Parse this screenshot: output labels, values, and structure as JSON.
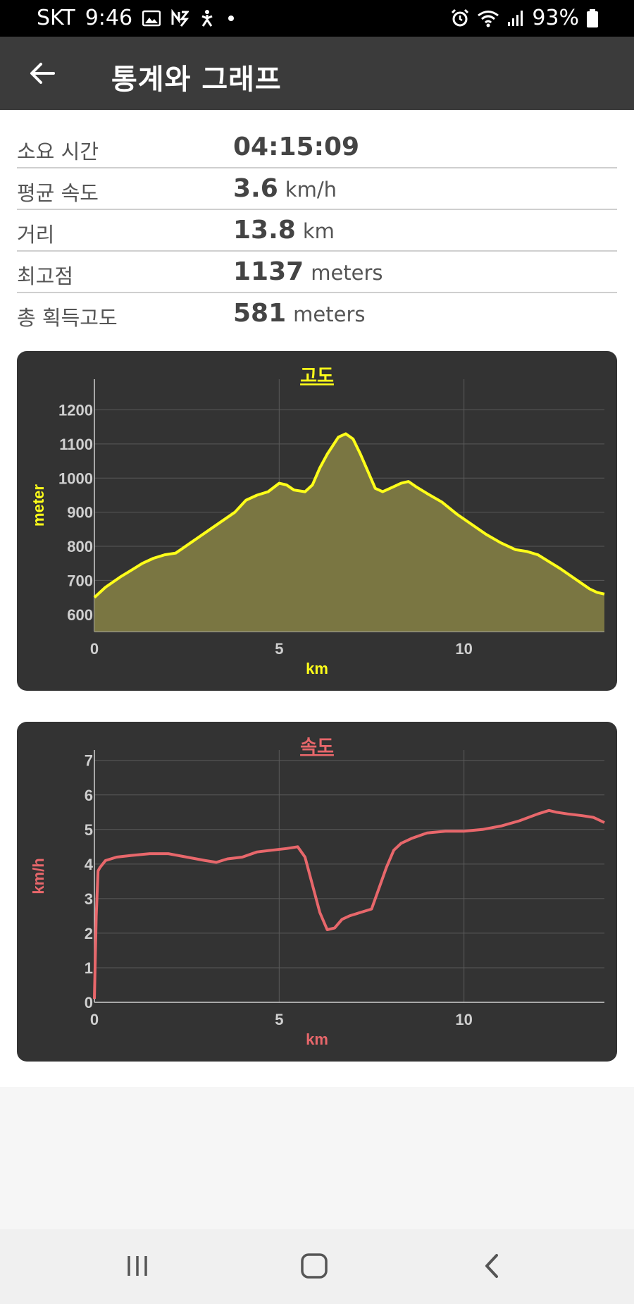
{
  "status_bar": {
    "carrier": "SKT",
    "time": "9:46",
    "battery": "93%",
    "icons": [
      "gallery-icon",
      "nfc-icon",
      "accessibility-icon",
      "dot-icon",
      "alarm-icon",
      "wifi-icon",
      "signal-icon",
      "battery-icon"
    ]
  },
  "app_bar": {
    "title": "통계와 그래프",
    "back_icon": "arrow-left-icon"
  },
  "stats": [
    {
      "label": "소요 시간",
      "value": "04:15:09",
      "unit": ""
    },
    {
      "label": "평균 속도",
      "value": "3.6",
      "unit": "km/h"
    },
    {
      "label": "거리",
      "value": "13.8",
      "unit": "km"
    },
    {
      "label": "최고점",
      "value": "1137",
      "unit": "meters"
    },
    {
      "label": "총 획득고도",
      "value": "581",
      "unit": "meters"
    }
  ],
  "chart_data": [
    {
      "type": "area",
      "title": "고도",
      "xlabel": "km",
      "ylabel": "meter",
      "xlim": [
        0,
        13.8
      ],
      "ylim": [
        550,
        1290
      ],
      "xticks": [
        0,
        5,
        10
      ],
      "yticks": [
        600,
        700,
        800,
        900,
        1000,
        1100,
        1200
      ],
      "grid": true,
      "color": "#ffff1a",
      "fill": "#7a7642",
      "x": [
        0,
        0.3,
        0.7,
        1.0,
        1.3,
        1.6,
        1.9,
        2.2,
        2.6,
        3.0,
        3.4,
        3.8,
        4.1,
        4.4,
        4.7,
        5.0,
        5.2,
        5.4,
        5.7,
        5.9,
        6.1,
        6.3,
        6.6,
        6.8,
        7.0,
        7.2,
        7.4,
        7.6,
        7.8,
        8.0,
        8.3,
        8.5,
        8.7,
        9.0,
        9.4,
        9.8,
        10.2,
        10.6,
        11.0,
        11.4,
        11.7,
        12.0,
        12.3,
        12.6,
        13.0,
        13.4,
        13.6,
        13.8
      ],
      "y": [
        650,
        680,
        710,
        730,
        750,
        765,
        775,
        780,
        810,
        840,
        870,
        900,
        935,
        950,
        960,
        985,
        980,
        965,
        960,
        980,
        1030,
        1070,
        1120,
        1130,
        1115,
        1070,
        1020,
        970,
        960,
        970,
        985,
        990,
        975,
        955,
        930,
        895,
        865,
        835,
        810,
        790,
        785,
        775,
        755,
        735,
        705,
        675,
        665,
        660
      ]
    },
    {
      "type": "line",
      "title": "속도",
      "xlabel": "km",
      "ylabel": "km/h",
      "xlim": [
        0,
        13.8
      ],
      "ylim": [
        0,
        7.3
      ],
      "xticks": [
        0,
        5,
        10
      ],
      "yticks": [
        0,
        1,
        2,
        3,
        4,
        5,
        6,
        7
      ],
      "grid": true,
      "color": "#e8676b",
      "x": [
        0,
        0.05,
        0.1,
        0.15,
        0.3,
        0.6,
        1.0,
        1.5,
        2.0,
        2.5,
        3.0,
        3.3,
        3.6,
        4.0,
        4.4,
        4.8,
        5.2,
        5.5,
        5.7,
        5.9,
        6.1,
        6.3,
        6.5,
        6.7,
        6.9,
        7.2,
        7.5,
        7.7,
        7.9,
        8.1,
        8.3,
        8.6,
        9.0,
        9.5,
        10.0,
        10.5,
        11.0,
        11.5,
        12.0,
        12.3,
        12.5,
        12.8,
        13.2,
        13.5,
        13.8
      ],
      "y": [
        0.1,
        2.5,
        3.8,
        3.9,
        4.1,
        4.2,
        4.25,
        4.3,
        4.3,
        4.2,
        4.1,
        4.05,
        4.15,
        4.2,
        4.35,
        4.4,
        4.45,
        4.5,
        4.2,
        3.4,
        2.6,
        2.1,
        2.15,
        2.4,
        2.5,
        2.6,
        2.7,
        3.3,
        3.9,
        4.4,
        4.6,
        4.75,
        4.9,
        4.95,
        4.95,
        5.0,
        5.1,
        5.25,
        5.45,
        5.55,
        5.5,
        5.45,
        5.4,
        5.35,
        5.2
      ]
    }
  ],
  "nav_bar": {
    "icons": [
      "recent-apps-icon",
      "home-icon",
      "back-icon"
    ]
  }
}
